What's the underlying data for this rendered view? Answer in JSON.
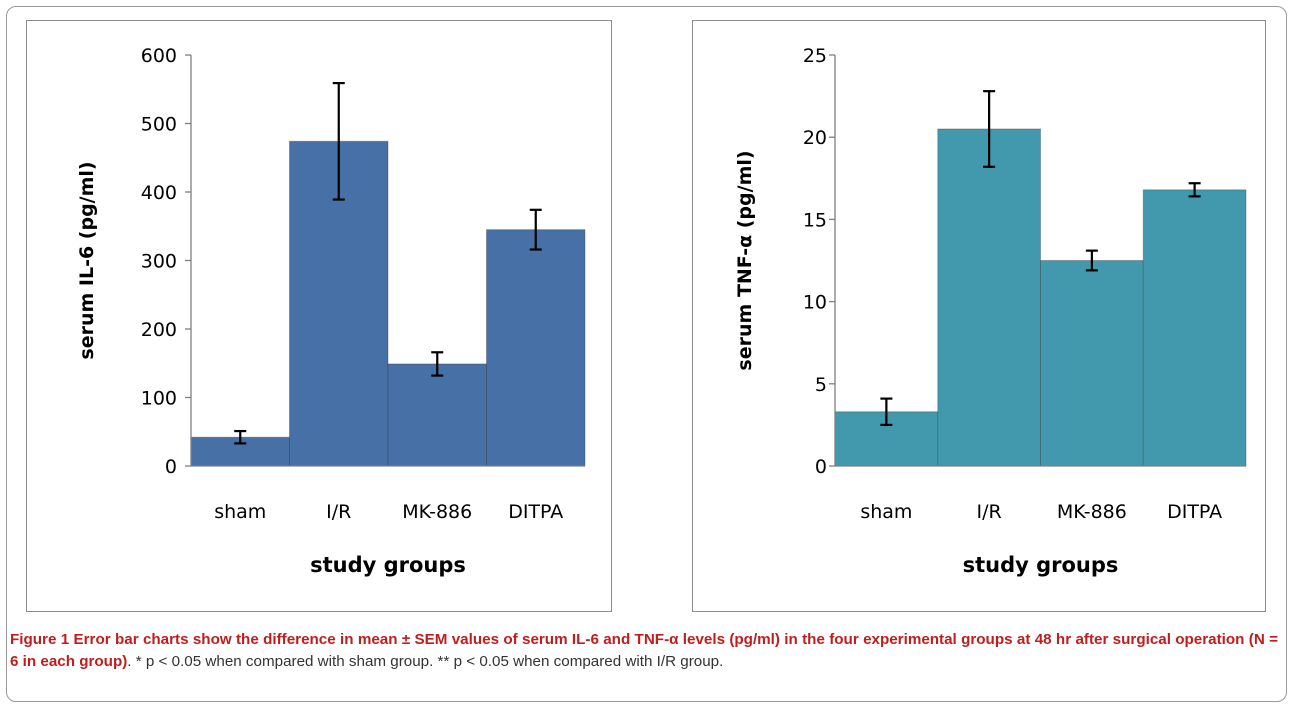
{
  "chart_data": [
    {
      "type": "bar",
      "categories": [
        "sham",
        "I/R",
        "MK-886",
        "DITPA"
      ],
      "values": [
        42,
        474,
        149,
        345
      ],
      "errors": [
        9,
        85,
        17,
        29
      ],
      "xlabel": "study groups",
      "ylabel": "serum IL-6 (pg/ml)",
      "ylim": [
        0,
        600
      ],
      "yticks": [
        0,
        100,
        200,
        300,
        400,
        500,
        600
      ],
      "color": "#4670a6",
      "grid": false,
      "legend": "none"
    },
    {
      "type": "bar",
      "categories": [
        "sham",
        "I/R",
        "MK-886",
        "DITPA"
      ],
      "values": [
        3.3,
        20.5,
        12.5,
        16.8
      ],
      "errors": [
        0.8,
        2.3,
        0.6,
        0.4
      ],
      "xlabel": "study groups",
      "ylabel": "serum TNF-α (pg/ml)",
      "ylim": [
        0,
        25
      ],
      "yticks": [
        0,
        5,
        10,
        15,
        20,
        25
      ],
      "color": "#4299ad",
      "grid": false,
      "legend": "none"
    }
  ],
  "caption": {
    "label": "Figure 1",
    "bold_text": "Error bar charts show the difference in mean ± SEM values of serum IL-6 and TNF-α levels (pg/ml) in the four experimental groups at 48 hr after surgical operation (N = 6 in each group)",
    "rest_text": ". * p < 0.05 when compared with sham group. ** p < 0.05 when compared with I/R group."
  }
}
